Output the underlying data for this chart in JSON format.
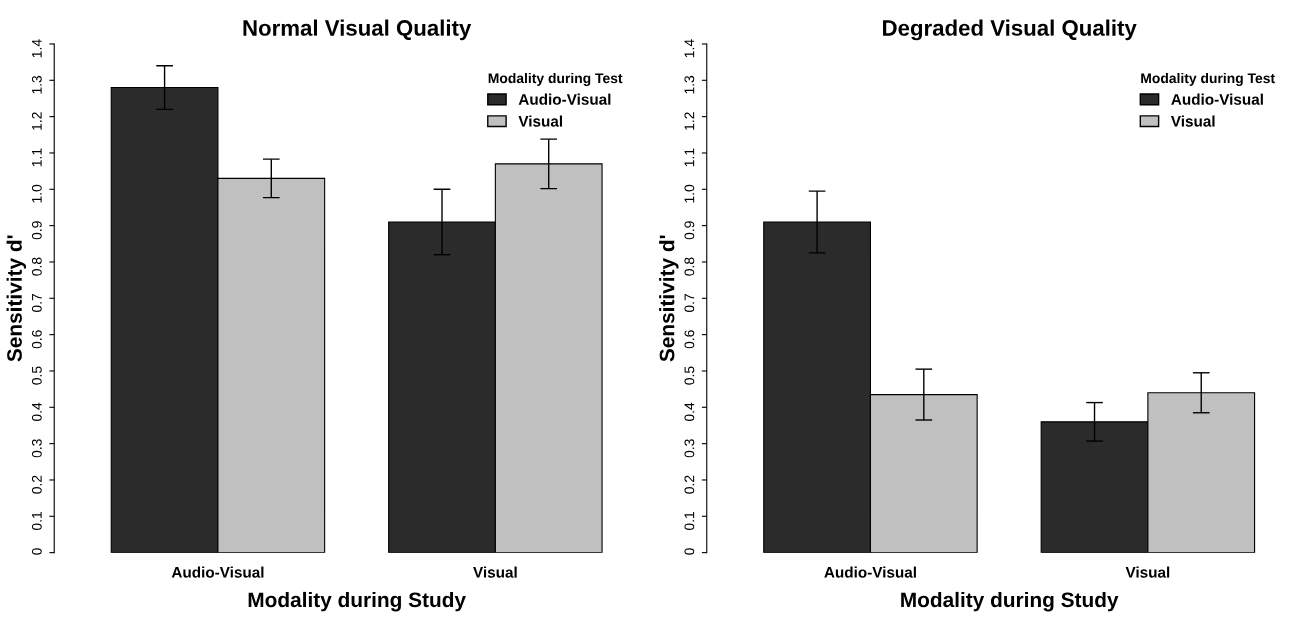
{
  "chart_data": [
    {
      "type": "bar",
      "title": "Normal Visual Quality",
      "xlabel": "Modality during Study",
      "ylabel": "Sensitivity d'",
      "legend_title": "Modality during Test",
      "legend": "top right",
      "grid": false,
      "categories": [
        "Audio-Visual",
        "Visual"
      ],
      "ylim": [
        0,
        1.4
      ],
      "yticks": [
        0,
        0.1,
        0.2,
        0.3,
        0.4,
        0.5,
        0.6,
        0.7,
        0.8,
        0.9,
        {
          "value": 1,
          "label": "1.0"
        },
        1.1,
        1.2,
        1.3,
        1.4
      ],
      "series": [
        {
          "name": "Audio-Visual",
          "color": "#2b2b2b",
          "values": [
            1.28,
            0.91
          ],
          "errors": [
            0.06,
            0.09
          ]
        },
        {
          "name": "Visual",
          "color": "#c0c0c0",
          "values": [
            1.03,
            1.07
          ],
          "errors": [
            0.053,
            0.068
          ]
        }
      ]
    },
    {
      "type": "bar",
      "title": "Degraded Visual Quality",
      "xlabel": "Modality during Study",
      "ylabel": "Sensitivity d'",
      "legend_title": "Modality during Test",
      "legend": "top right",
      "grid": false,
      "categories": [
        "Audio-Visual",
        "Visual"
      ],
      "ylim": [
        0,
        1.4
      ],
      "yticks": [
        0,
        0.1,
        0.2,
        0.3,
        0.4,
        0.5,
        0.6,
        0.7,
        0.8,
        0.9,
        {
          "value": 1,
          "label": "1.0"
        },
        1.1,
        1.2,
        1.3,
        1.4
      ],
      "series": [
        {
          "name": "Audio-Visual",
          "color": "#2b2b2b",
          "values": [
            0.91,
            0.36
          ],
          "errors": [
            0.085,
            0.053
          ]
        },
        {
          "name": "Visual",
          "color": "#c0c0c0",
          "values": [
            0.435,
            0.44
          ],
          "errors": [
            0.07,
            0.055
          ]
        }
      ]
    }
  ]
}
